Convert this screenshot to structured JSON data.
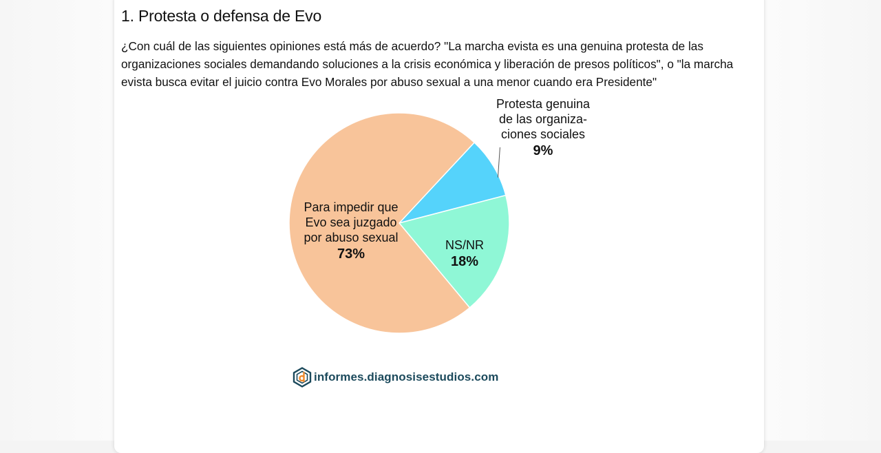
{
  "header": {
    "title": "1. Protesta o defensa de Evo"
  },
  "question": {
    "text": "¿Con cuál de las siguientes opiniones está más de acuerdo? \"La marcha evista es una genuina protesta de las organizaciones sociales demandando soluciones a la crisis económica y liberación de presos políticos\", o \"la marcha evista busca evitar el juicio contra Evo Morales por abuso sexual a una menor cuando era Presidente\""
  },
  "chart_data": {
    "type": "pie",
    "slices": [
      {
        "label_lines": [
          "Protesta genuina",
          "de las organiza-",
          "ciones sociales"
        ],
        "value": 9,
        "value_label": "9%",
        "color": "#55d3fb"
      },
      {
        "label_lines": [
          "NS/NR"
        ],
        "value": 18,
        "value_label": "18%",
        "color": "#8ff7d6"
      },
      {
        "label_lines": [
          "Para impedir que",
          "Evo sea juzgado",
          "por abuso sexual"
        ],
        "value": 73,
        "value_label": "73%",
        "color": "#f8c49a"
      }
    ]
  },
  "footer": {
    "logo_text": "informes.diagnosisestudios.com",
    "logo_colors": {
      "primary": "#1c4a5c",
      "accent": "#f08a2c"
    }
  }
}
